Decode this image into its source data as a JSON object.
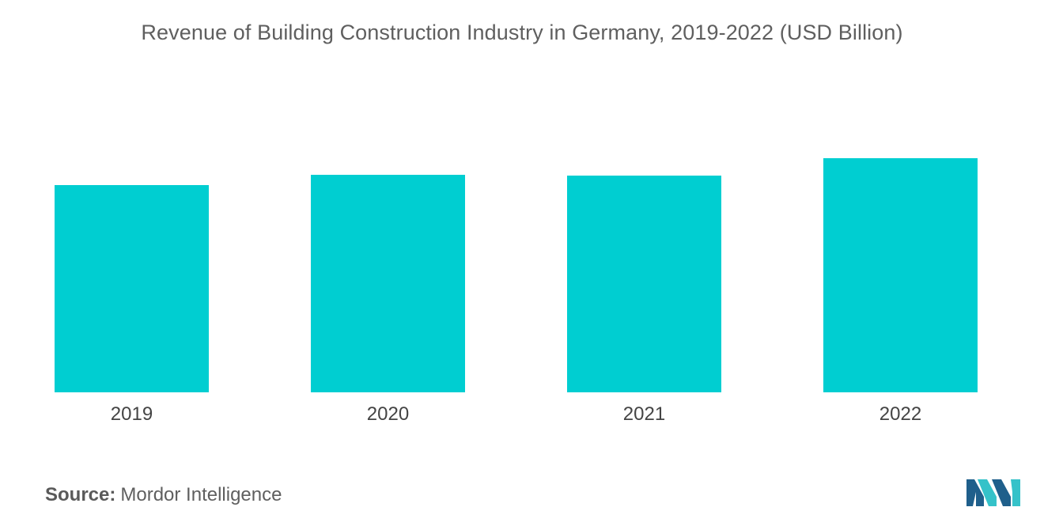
{
  "chart_data": {
    "type": "bar",
    "title": "Revenue of Building Construction Industry in Germany, 2019-2022 (USD Billion)",
    "categories": [
      "2019",
      "2020",
      "2021",
      "2022"
    ],
    "values": [
      262,
      275,
      274,
      296
    ],
    "ylim": [
      0,
      350
    ],
    "xlabel": "",
    "ylabel": "",
    "grid": false,
    "legend": "none",
    "bar_color": "#00CED1"
  },
  "source": {
    "label": "Source:",
    "text": "Mordor Intelligence"
  },
  "logo": {
    "icon": "mordor-intelligence-logo-icon",
    "colors": [
      "#1f5f8b",
      "#35c2c9"
    ]
  }
}
